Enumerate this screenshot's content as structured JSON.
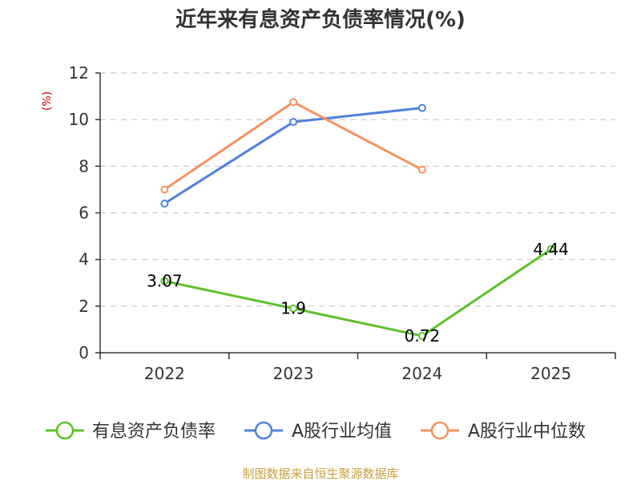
{
  "chart_data": {
    "type": "line",
    "title": "近年来有息资产负债率情况(%)",
    "ylabel": "(%)",
    "xlabel": "",
    "categories": [
      "2022",
      "2023",
      "2024",
      "2025"
    ],
    "ylim": [
      0,
      12
    ],
    "yticks": [
      0,
      2,
      4,
      6,
      8,
      10,
      12
    ],
    "grid": true,
    "legend_position": "bottom",
    "series": [
      {
        "name": "有息资产负债率",
        "color": "#5cc12a",
        "values": [
          3.07,
          1.9,
          0.72,
          4.44
        ],
        "data_labels": [
          "3.07",
          "1.9",
          "0.72",
          "4.44"
        ]
      },
      {
        "name": "A股行业均值",
        "color": "#4f81dc",
        "values": [
          6.4,
          9.9,
          10.5,
          null
        ]
      },
      {
        "name": "A股行业中位数",
        "color": "#f7925d",
        "values": [
          7.0,
          10.75,
          7.85,
          null
        ]
      }
    ],
    "source": "制图数据来自恒生聚源数据库"
  }
}
